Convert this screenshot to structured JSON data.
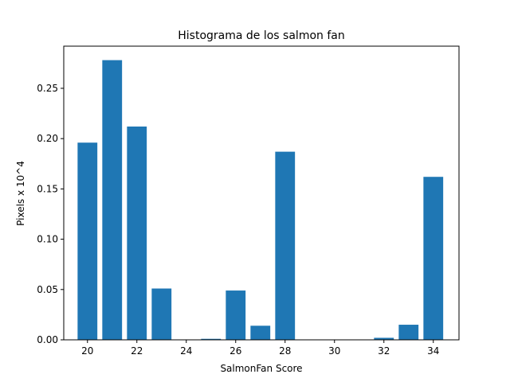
{
  "chart_data": {
    "type": "bar",
    "title": "Histograma de los salmon fan",
    "xlabel": "SalmonFan Score",
    "ylabel": "Pixels x 10^4",
    "x": [
      20,
      21,
      22,
      23,
      24,
      25,
      26,
      27,
      28,
      29,
      30,
      31,
      32,
      33,
      34
    ],
    "values": [
      0.196,
      0.278,
      0.212,
      0.051,
      0.0,
      0.001,
      0.049,
      0.014,
      0.187,
      0.0,
      0.0,
      0.0,
      0.002,
      0.015,
      0.162
    ],
    "xlim": [
      19.04,
      35.04
    ],
    "ylim": [
      0.0,
      0.2919
    ],
    "xticks": [
      20,
      22,
      24,
      26,
      28,
      30,
      32,
      34
    ],
    "xtick_labels": [
      "20",
      "22",
      "24",
      "26",
      "28",
      "30",
      "32",
      "34"
    ],
    "yticks": [
      0.0,
      0.05,
      0.1,
      0.15,
      0.2,
      0.25
    ],
    "ytick_labels": [
      "0.00",
      "0.05",
      "0.10",
      "0.15",
      "0.20",
      "0.25"
    ],
    "bar_width": 0.8,
    "color": "#1f77b4",
    "grid": false,
    "legend": "none"
  }
}
